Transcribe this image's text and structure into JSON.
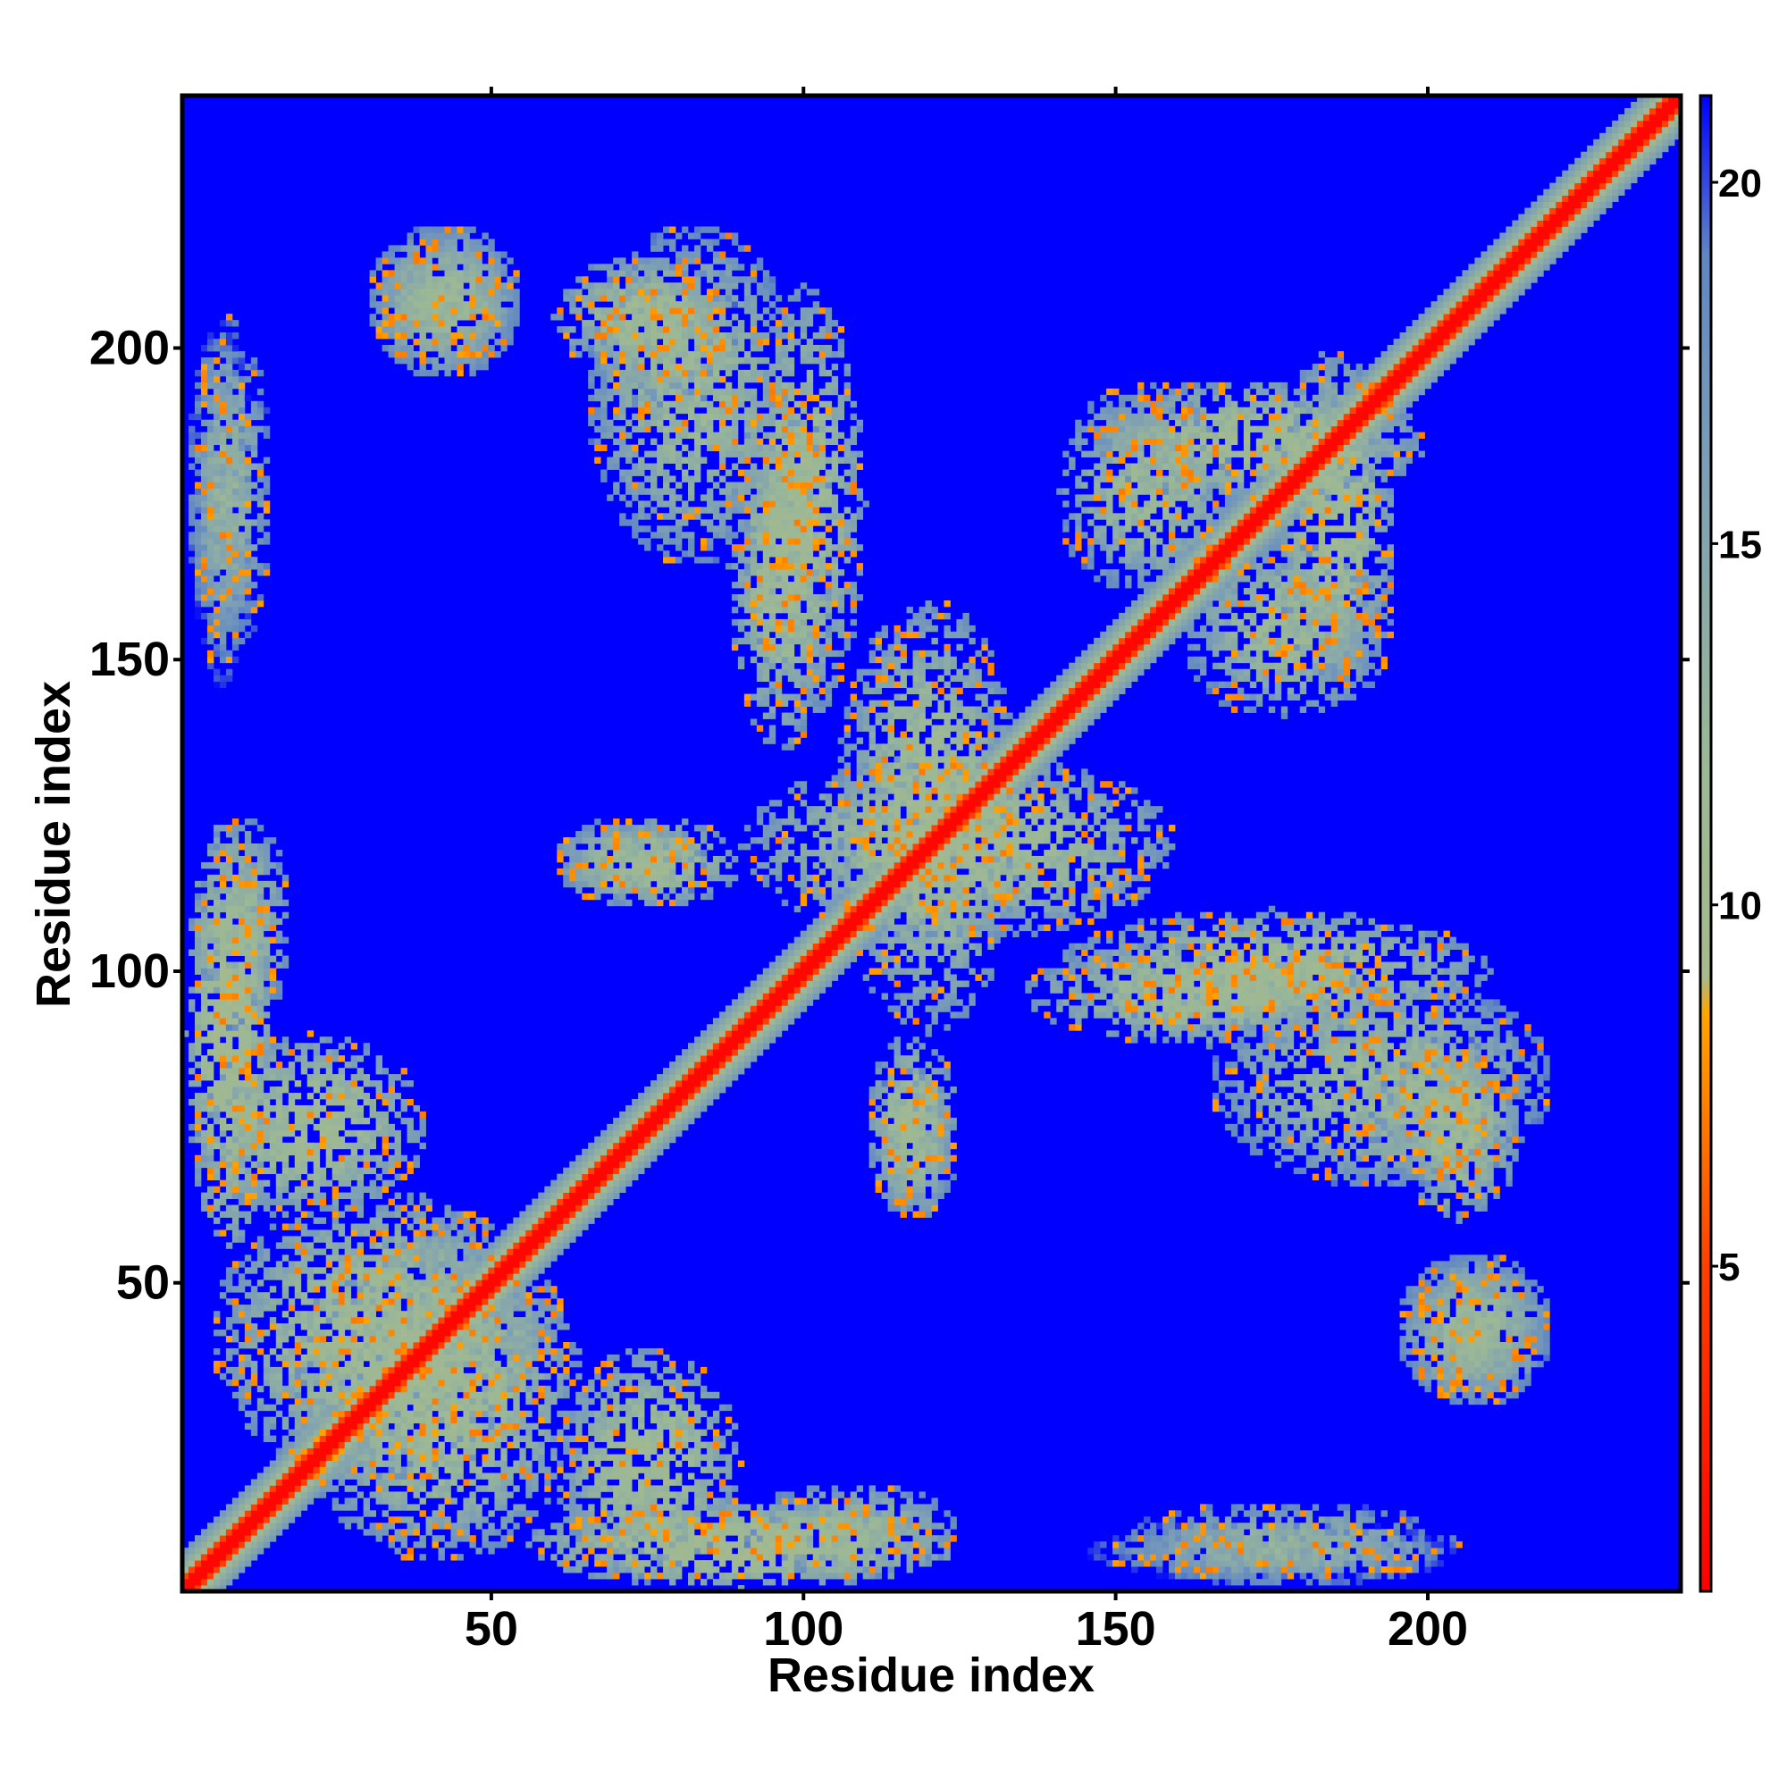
{
  "chart_data": {
    "type": "heatmap",
    "title": "",
    "xlabel": "Residue index",
    "ylabel": "Residue index",
    "xlim": [
      1,
      240
    ],
    "ylim": [
      1,
      240
    ],
    "x_ticks": [
      50,
      100,
      150,
      200
    ],
    "y_ticks": [
      50,
      100,
      150,
      200
    ],
    "x_tick_labels": [
      "50",
      "100",
      "150",
      "200"
    ],
    "y_tick_labels": [
      "50",
      "100",
      "150",
      "200"
    ],
    "colorbar": {
      "range": [
        0.5,
        21.2
      ],
      "ticks": [
        5,
        10,
        15,
        20
      ],
      "tick_labels": [
        "5",
        "10",
        "15",
        "20"
      ],
      "colors": [
        {
          "value": 0.5,
          "color": "#ff0000"
        },
        {
          "value": 5.0,
          "color": "#ff4000"
        },
        {
          "value": 8.5,
          "color": "#ffa500"
        },
        {
          "value": 9.0,
          "color": "#a8b98c"
        },
        {
          "value": 12.0,
          "color": "#9bb896"
        },
        {
          "value": 16.0,
          "color": "#7d9fb5"
        },
        {
          "value": 19.0,
          "color": "#5f86c4"
        },
        {
          "value": 21.2,
          "color": "#0000ff"
        }
      ]
    },
    "cutoff": 21.2,
    "background_color": "#0000ff",
    "diagonal_color": "#ff0000",
    "contact_regions": [
      {
        "x": [
          1,
          240
        ],
        "y": [
          1,
          240
        ],
        "kind": "diagonal band",
        "value": 1
      },
      {
        "x": [
          18,
          65
        ],
        "y": [
          5,
          60
        ],
        "kind": "cluster",
        "value": 11
      },
      {
        "x": [
          60,
          90
        ],
        "y": [
          2,
          40
        ],
        "kind": "cluster",
        "value": 11
      },
      {
        "x": [
          90,
          125
        ],
        "y": [
          2,
          18
        ],
        "kind": "cluster",
        "value": 12
      },
      {
        "x": [
          145,
          205
        ],
        "y": [
          2,
          12
        ],
        "kind": "cluster",
        "value": 14
      },
      {
        "x": [
          110,
          125
        ],
        "y": [
          60,
          90
        ],
        "kind": "cluster",
        "value": 11
      },
      {
        "x": [
          195,
          215
        ],
        "y": [
          60,
          90
        ],
        "kind": "cluster",
        "value": 11
      },
      {
        "x": [
          195,
          220
        ],
        "y": [
          30,
          55
        ],
        "kind": "cluster",
        "value": 12
      },
      {
        "x": [
          1,
          15
        ],
        "y": [
          55,
          125
        ],
        "kind": "cluster",
        "value": 10
      },
      {
        "x": [
          1,
          15
        ],
        "y": [
          150,
          205
        ],
        "kind": "cluster",
        "value": 13
      },
      {
        "x": [
          30,
          55
        ],
        "y": [
          195,
          220
        ],
        "kind": "cluster",
        "value": 12
      },
      {
        "x": [
          65,
          90
        ],
        "y": [
          190,
          215
        ],
        "kind": "cluster",
        "value": 12
      },
      {
        "x": [
          88,
          105
        ],
        "y": [
          135,
          195
        ],
        "kind": "cluster",
        "value": 11
      },
      {
        "x": [
          105,
          135
        ],
        "y": [
          90,
          160
        ],
        "kind": "cluster",
        "value": 11
      },
      {
        "x": [
          140,
          210
        ],
        "y": [
          90,
          110
        ],
        "kind": "cluster",
        "value": 11
      },
      {
        "x": [
          175,
          195
        ],
        "y": [
          145,
          200
        ],
        "kind": "cluster",
        "value": 11
      },
      {
        "x": [
          140,
          170
        ],
        "y": [
          160,
          195
        ],
        "kind": "cluster",
        "value": 12
      },
      {
        "x": [
          60,
          85
        ],
        "y": [
          110,
          125
        ],
        "kind": "cluster",
        "value": 12
      },
      {
        "x": [
          165,
          220
        ],
        "y": [
          65,
          100
        ],
        "kind": "cluster",
        "value": 12
      }
    ]
  }
}
